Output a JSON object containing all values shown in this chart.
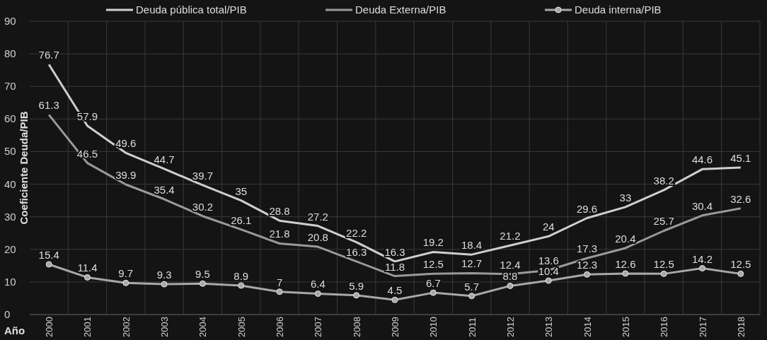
{
  "chart_data": {
    "type": "line",
    "ylabel": "Coeficiente Deuda/PIB",
    "xlabel": "Año",
    "categories": [
      "2000",
      "2001",
      "2002",
      "2003",
      "2004",
      "2005",
      "2006",
      "2007",
      "2008",
      "2009",
      "2010",
      "2011",
      "2012",
      "2013",
      "2014",
      "2015",
      "2016",
      "2017",
      "2018"
    ],
    "series": [
      {
        "name": "Deuda pública total/PIB",
        "color": "#cfcfcf",
        "marker": "none",
        "values": [
          76.7,
          57.9,
          49.6,
          44.7,
          39.7,
          35,
          28.8,
          27.2,
          22.2,
          16.3,
          19.2,
          18.4,
          21.2,
          24,
          29.6,
          33,
          38.2,
          44.6,
          45.1
        ]
      },
      {
        "name": "Deuda Externa/PIB",
        "color": "#9a9a9a",
        "marker": "none",
        "values": [
          61.3,
          46.5,
          39.9,
          35.4,
          30.2,
          26.1,
          21.8,
          20.8,
          16.3,
          11.8,
          12.5,
          12.7,
          12.4,
          13.6,
          17.3,
          20.4,
          25.7,
          30.4,
          32.6
        ]
      },
      {
        "name": "Deuda interna/PIB",
        "color": "#a8a8a8",
        "marker": "circle",
        "values": [
          15.4,
          11.4,
          9.7,
          9.3,
          9.5,
          8.9,
          7,
          6.4,
          5.9,
          4.5,
          6.7,
          5.7,
          8.8,
          10.4,
          12.3,
          12.6,
          12.5,
          14.2,
          12.5
        ]
      }
    ],
    "ylim": [
      0,
      90
    ],
    "yticks": [
      0,
      10,
      20,
      30,
      40,
      50,
      60,
      70,
      80,
      90
    ],
    "grid": true,
    "legend": "top",
    "data_labels": true
  }
}
